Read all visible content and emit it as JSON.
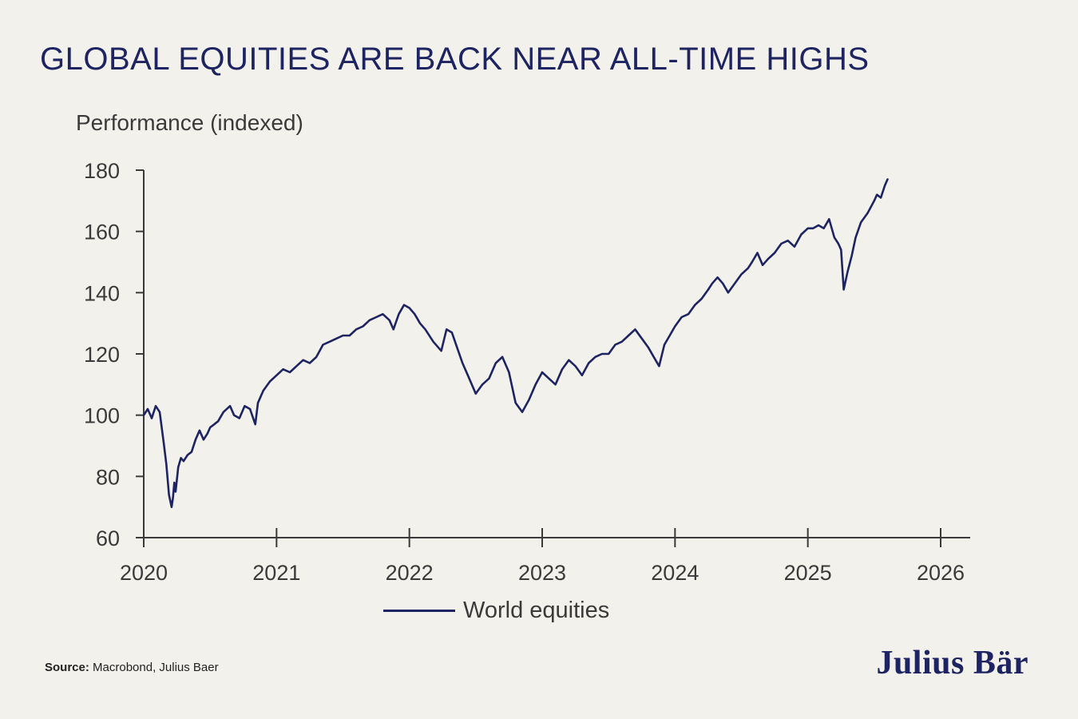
{
  "title": "GLOBAL EQUITIES ARE BACK NEAR ALL-TIME HIGHS",
  "source_label": "Source:",
  "source_text": "Macrobond, Julius Baer",
  "logo_text": "Julius Bär",
  "colors": {
    "line": "#1e2461",
    "background": "#f3f1ec",
    "axis": "#3a3a3a"
  },
  "chart_data": {
    "type": "line",
    "title": "GLOBAL EQUITIES ARE BACK NEAR ALL-TIME HIGHS",
    "xlabel": "",
    "ylabel": "Performance (indexed)",
    "xlim": [
      2020,
      2026
    ],
    "ylim": [
      60,
      180
    ],
    "xticks": [
      2020,
      2021,
      2022,
      2023,
      2024,
      2025,
      2026
    ],
    "yticks": [
      60,
      80,
      100,
      120,
      140,
      160,
      180
    ],
    "grid": false,
    "legend_position": "bottom-center",
    "series": [
      {
        "name": "World equities",
        "x": [
          2020.0,
          2020.03,
          2020.06,
          2020.09,
          2020.12,
          2020.15,
          2020.17,
          2020.19,
          2020.21,
          2020.22,
          2020.23,
          2020.24,
          2020.26,
          2020.28,
          2020.3,
          2020.33,
          2020.36,
          2020.39,
          2020.42,
          2020.45,
          2020.48,
          2020.5,
          2020.53,
          2020.56,
          2020.6,
          2020.65,
          2020.68,
          2020.72,
          2020.76,
          2020.8,
          2020.84,
          2020.86,
          2020.9,
          2020.95,
          2021.0,
          2021.05,
          2021.1,
          2021.15,
          2021.2,
          2021.25,
          2021.3,
          2021.35,
          2021.4,
          2021.45,
          2021.5,
          2021.55,
          2021.6,
          2021.65,
          2021.7,
          2021.75,
          2021.8,
          2021.85,
          2021.88,
          2021.92,
          2021.96,
          2022.0,
          2022.04,
          2022.08,
          2022.12,
          2022.18,
          2022.24,
          2022.28,
          2022.32,
          2022.36,
          2022.4,
          2022.44,
          2022.46,
          2022.5,
          2022.55,
          2022.6,
          2022.65,
          2022.7,
          2022.75,
          2022.8,
          2022.85,
          2022.9,
          2022.95,
          2023.0,
          2023.05,
          2023.1,
          2023.15,
          2023.2,
          2023.25,
          2023.3,
          2023.35,
          2023.4,
          2023.45,
          2023.5,
          2023.55,
          2023.6,
          2023.65,
          2023.7,
          2023.75,
          2023.8,
          2023.84,
          2023.88,
          2023.92,
          2023.96,
          2024.0,
          2024.05,
          2024.1,
          2024.15,
          2024.2,
          2024.25,
          2024.28,
          2024.32,
          2024.36,
          2024.4,
          2024.45,
          2024.5,
          2024.55,
          2024.58,
          2024.62,
          2024.66,
          2024.7,
          2024.75,
          2024.8,
          2024.85,
          2024.9,
          2024.95,
          2025.0,
          2025.04,
          2025.08,
          2025.12,
          2025.16,
          2025.2,
          2025.23,
          2025.25,
          2025.27,
          2025.3,
          2025.33,
          2025.36,
          2025.4,
          2025.45,
          2025.5,
          2025.52,
          2025.55,
          2025.58,
          2025.6
        ],
        "values": [
          100,
          102,
          99,
          103,
          101,
          91,
          84,
          74,
          70,
          73,
          78,
          75,
          83,
          86,
          85,
          87,
          88,
          92,
          95,
          92,
          94,
          96,
          97,
          98,
          101,
          103,
          100,
          99,
          103,
          102,
          97,
          104,
          108,
          111,
          113,
          115,
          114,
          116,
          118,
          117,
          119,
          123,
          124,
          125,
          126,
          126,
          128,
          129,
          131,
          132,
          133,
          131,
          128,
          133,
          136,
          135,
          133,
          130,
          128,
          124,
          121,
          128,
          127,
          122,
          117,
          113,
          111,
          107,
          110,
          112,
          117,
          119,
          114,
          104,
          101,
          105,
          110,
          114,
          112,
          110,
          115,
          118,
          116,
          113,
          117,
          119,
          120,
          120,
          123,
          124,
          126,
          128,
          125,
          122,
          119,
          116,
          123,
          126,
          129,
          132,
          133,
          136,
          138,
          141,
          143,
          145,
          143,
          140,
          143,
          146,
          148,
          150,
          153,
          149,
          151,
          153,
          156,
          157,
          155,
          159,
          161,
          161,
          162,
          161,
          164,
          158,
          156,
          154,
          141,
          147,
          152,
          158,
          163,
          166,
          170,
          172,
          171,
          175,
          177
        ]
      }
    ]
  }
}
